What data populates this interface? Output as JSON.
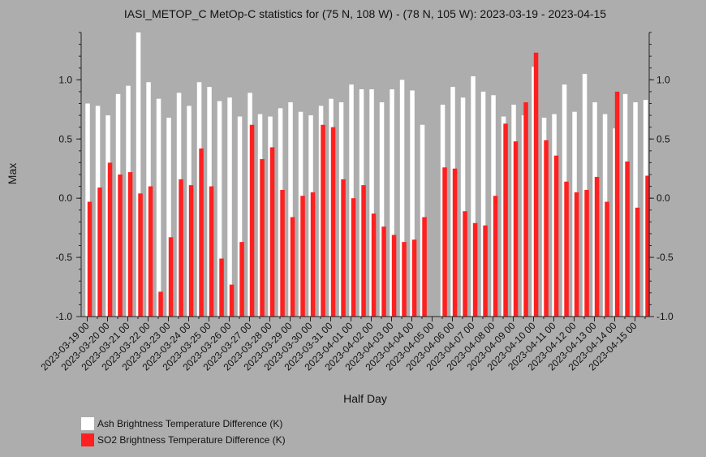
{
  "chart_data": {
    "type": "bar",
    "title": "IASI_METOP_C MetOp-C statistics for (75 N, 108 W) - (78 N, 105 W): 2023-03-19 - 2023-04-15",
    "xlabel": "Half Day",
    "ylabel": "Max",
    "ylim": [
      -1.0,
      1.4
    ],
    "yticks": [
      "1.0",
      "0.5",
      "0.0",
      "-0.5",
      "-1.0"
    ],
    "ytick_values": [
      1.0,
      0.5,
      0.0,
      -0.5,
      -1.0
    ],
    "grid": false,
    "legend_position": "bottom-left",
    "categories": [
      "2023-03-19 00",
      "2023-03-19 12",
      "2023-03-20 00",
      "2023-03-20 12",
      "2023-03-21 00",
      "2023-03-21 12",
      "2023-03-22 00",
      "2023-03-22 12",
      "2023-03-23 00",
      "2023-03-23 12",
      "2023-03-24 00",
      "2023-03-24 12",
      "2023-03-25 00",
      "2023-03-25 12",
      "2023-03-26 00",
      "2023-03-26 12",
      "2023-03-27 00",
      "2023-03-27 12",
      "2023-03-28 00",
      "2023-03-28 12",
      "2023-03-29 00",
      "2023-03-29 12",
      "2023-03-30 00",
      "2023-03-30 12",
      "2023-03-31 00",
      "2023-03-31 12",
      "2023-04-01 00",
      "2023-04-01 12",
      "2023-04-02 00",
      "2023-04-02 12",
      "2023-04-03 00",
      "2023-04-03 12",
      "2023-04-04 00",
      "2023-04-04 12",
      "2023-04-05 00",
      "2023-04-05 12",
      "2023-04-06 00",
      "2023-04-06 12",
      "2023-04-07 00",
      "2023-04-07 12",
      "2023-04-08 00",
      "2023-04-08 12",
      "2023-04-09 00",
      "2023-04-09 12",
      "2023-04-10 00",
      "2023-04-10 12",
      "2023-04-11 00",
      "2023-04-11 12",
      "2023-04-12 00",
      "2023-04-12 12",
      "2023-04-13 00",
      "2023-04-13 12",
      "2023-04-14 00",
      "2023-04-14 12",
      "2023-04-15 00",
      "2023-04-15 12"
    ],
    "xtick_labels": [
      "2023-03-19 00",
      "2023-03-20 00",
      "2023-03-21 00",
      "2023-03-22 00",
      "2023-03-23 00",
      "2023-03-24 00",
      "2023-03-25 00",
      "2023-03-26 00",
      "2023-03-27 00",
      "2023-03-28 00",
      "2023-03-29 00",
      "2023-03-30 00",
      "2023-03-31 00",
      "2023-04-01 00",
      "2023-04-02 00",
      "2023-04-03 00",
      "2023-04-04 00",
      "2023-04-05 00",
      "2023-04-06 00",
      "2023-04-07 00",
      "2023-04-08 00",
      "2023-04-09 00",
      "2023-04-10 00",
      "2023-04-11 00",
      "2023-04-12 00",
      "2023-04-13 00",
      "2023-04-14 00",
      "2023-04-15 00"
    ],
    "series": [
      {
        "name": "Ash Brightness Temperature Difference (K)",
        "color": "#ffffff",
        "values": [
          0.8,
          0.78,
          0.7,
          0.88,
          0.95,
          1.4,
          0.98,
          0.84,
          0.68,
          0.89,
          0.78,
          0.98,
          0.94,
          0.82,
          0.85,
          0.69,
          0.89,
          0.71,
          0.69,
          0.76,
          0.81,
          0.73,
          0.7,
          0.78,
          0.84,
          0.81,
          0.96,
          0.92,
          0.92,
          0.81,
          0.92,
          1.0,
          0.91,
          0.62,
          null,
          0.79,
          0.94,
          0.85,
          1.03,
          0.9,
          0.87,
          0.69,
          0.79,
          0.7,
          1.11,
          0.68,
          0.71,
          0.96,
          0.73,
          1.05,
          0.81,
          0.71,
          0.59,
          0.88,
          0.81,
          0.83
        ]
      },
      {
        "name": "SO2 Brightness Temperature Difference (K)",
        "color": "#ff2020",
        "values": [
          -0.03,
          0.09,
          0.3,
          0.2,
          0.22,
          0.04,
          0.1,
          -0.79,
          -0.33,
          0.16,
          0.11,
          0.42,
          0.1,
          -0.51,
          -0.73,
          -0.37,
          0.62,
          0.33,
          0.43,
          0.07,
          -0.16,
          0.02,
          0.05,
          0.62,
          0.6,
          0.16,
          0.0,
          0.11,
          -0.13,
          -0.24,
          -0.31,
          -0.37,
          -0.35,
          -0.16,
          null,
          0.26,
          0.25,
          -0.11,
          -0.21,
          -0.23,
          0.02,
          0.63,
          0.48,
          0.81,
          1.23,
          0.49,
          0.36,
          0.14,
          0.05,
          0.07,
          0.18,
          -0.03,
          0.9,
          0.31,
          -0.08,
          0.19
        ]
      }
    ]
  }
}
